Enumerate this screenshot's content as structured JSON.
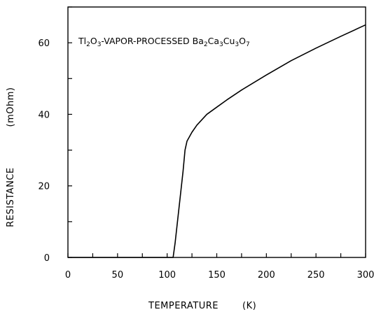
{
  "chart_data": {
    "type": "line",
    "title": "",
    "annotation": {
      "parts": [
        {
          "t": "Tl",
          "sub": false
        },
        {
          "t": "2",
          "sub": true
        },
        {
          "t": "O",
          "sub": false
        },
        {
          "t": "3",
          "sub": true
        },
        {
          "t": "-VAPOR-PROCESSED Ba",
          "sub": false
        },
        {
          "t": "2",
          "sub": true
        },
        {
          "t": "Ca",
          "sub": false
        },
        {
          "t": "3",
          "sub": true
        },
        {
          "t": "Cu",
          "sub": false
        },
        {
          "t": "3",
          "sub": true
        },
        {
          "t": "O",
          "sub": false
        },
        {
          "t": "7",
          "sub": true
        }
      ]
    },
    "xlabel": "TEMPERATURE",
    "xunit": "(K)",
    "ylabel": "RESISTANCE",
    "yunit": "(mOhm)",
    "xlim": [
      0,
      300
    ],
    "ylim": [
      0,
      70
    ],
    "xticks": [
      0,
      50,
      100,
      150,
      200,
      250,
      300
    ],
    "yticks": [
      0,
      20,
      40,
      60
    ],
    "grid": false,
    "series": [
      {
        "color": "#000000",
        "x": [
          0,
          106,
          108,
          110,
          112,
          114,
          116,
          117,
          118,
          120,
          125,
          130,
          140,
          150,
          160,
          175,
          200,
          225,
          250,
          275,
          300
        ],
        "y": [
          0,
          0,
          4,
          9,
          14,
          19,
          24,
          27,
          30,
          32.5,
          35,
          37,
          40,
          42,
          44,
          46.8,
          51,
          55,
          58.5,
          61.8,
          65
        ]
      }
    ]
  }
}
